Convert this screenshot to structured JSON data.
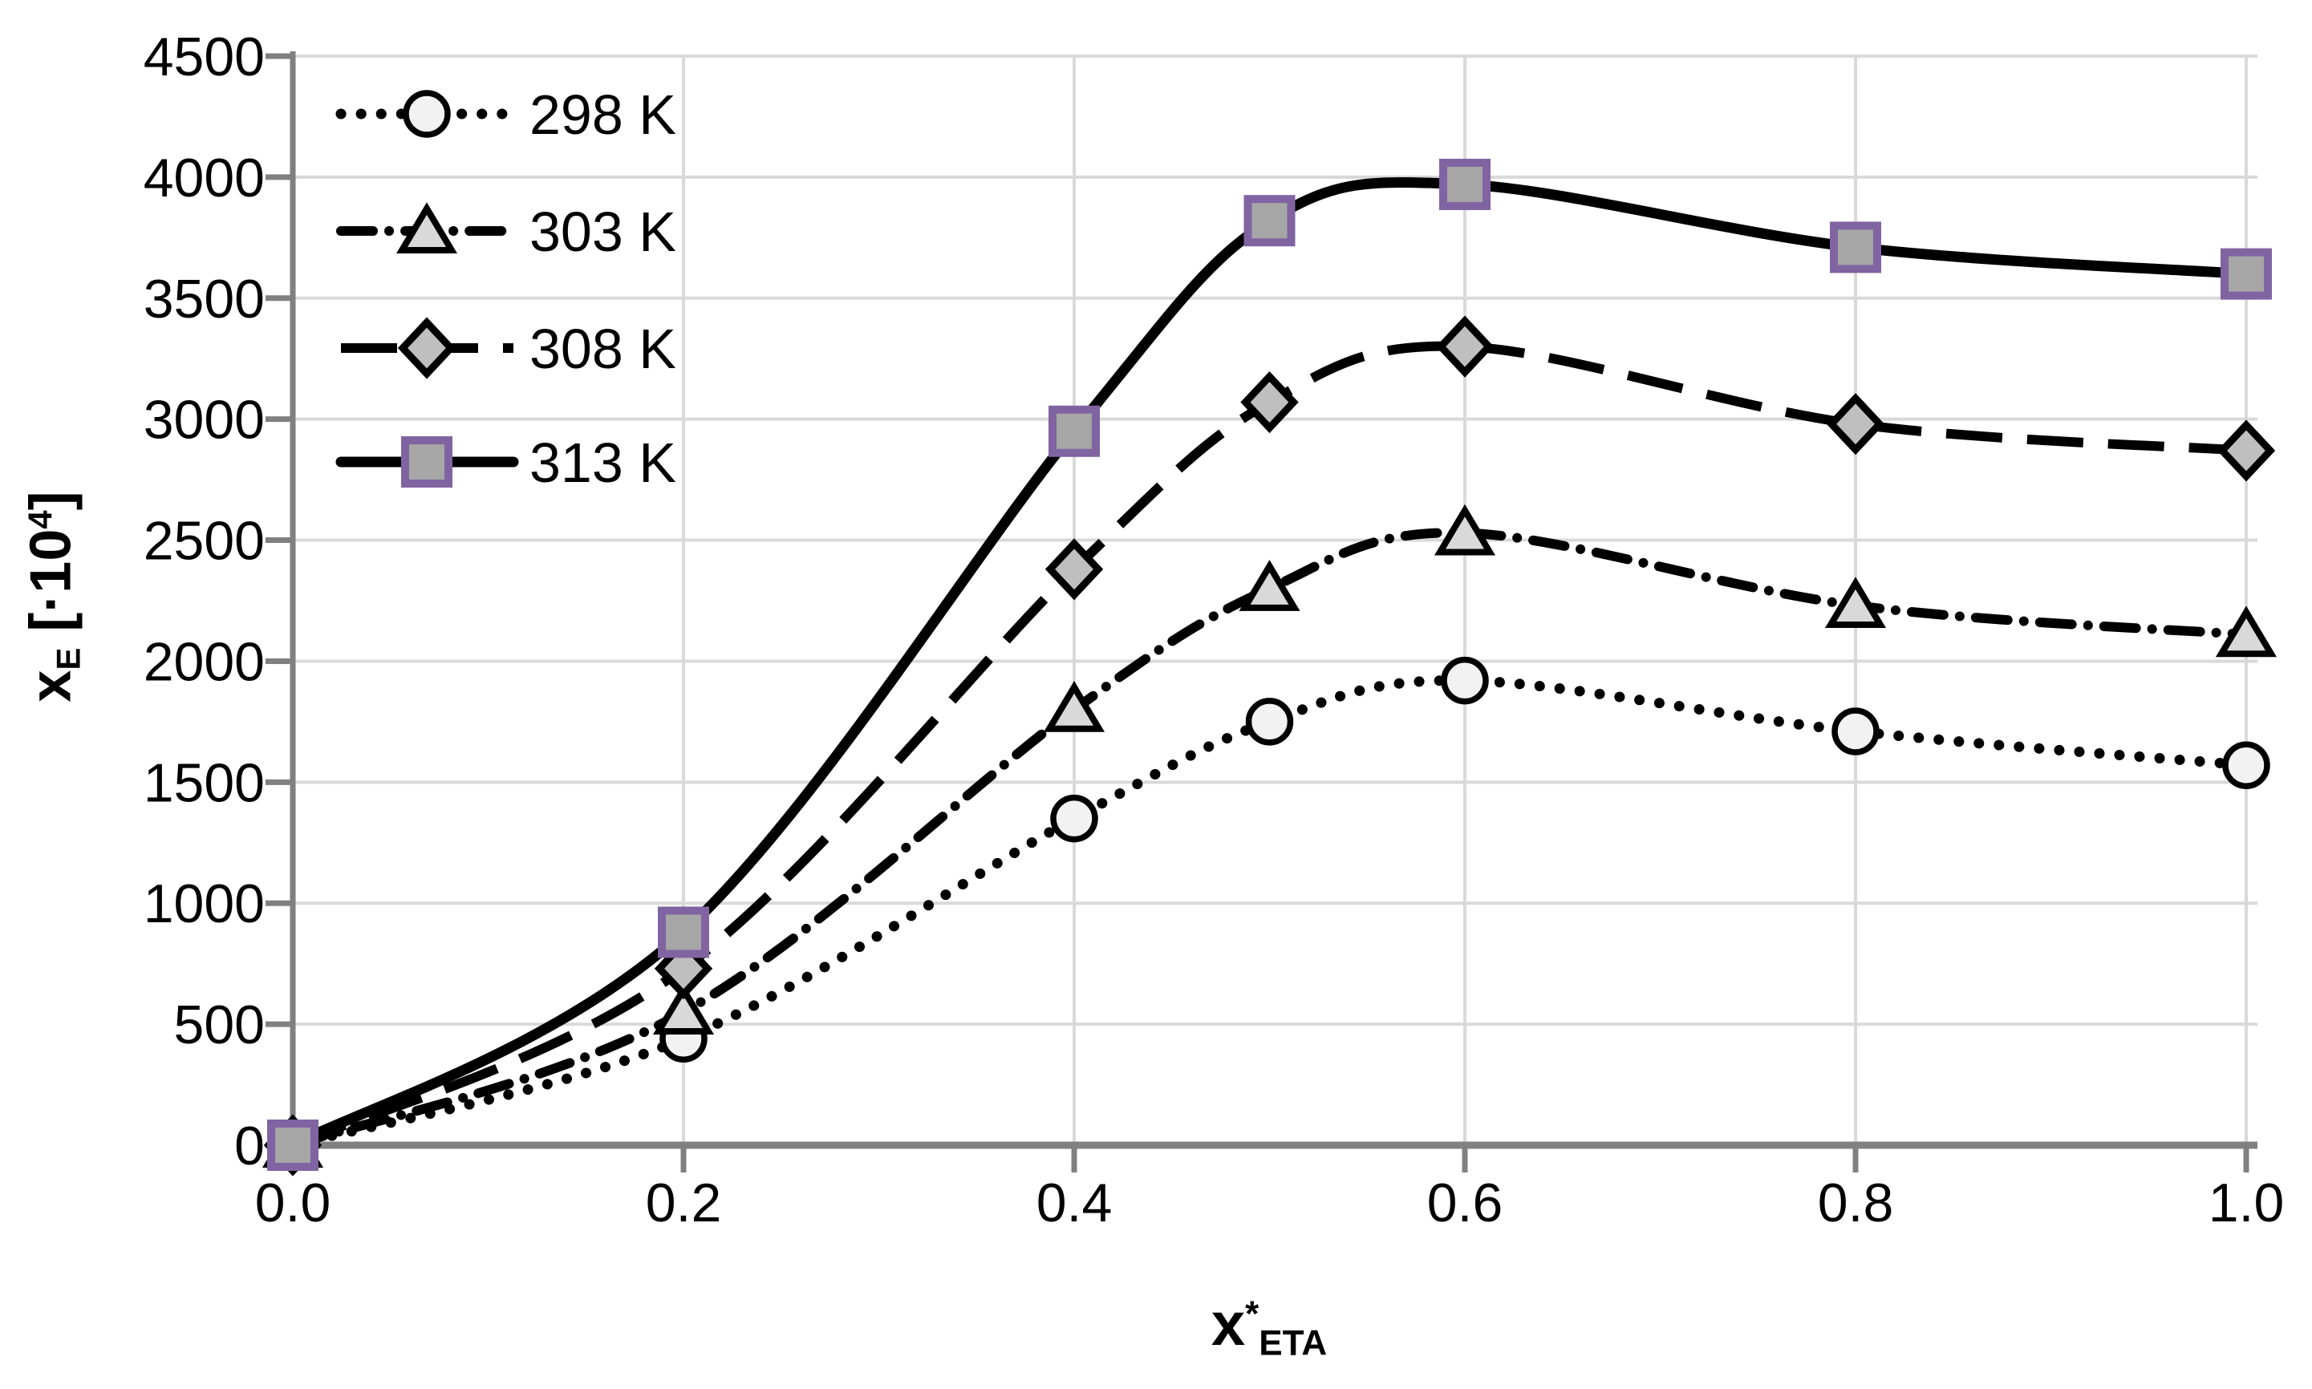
{
  "chart_data": {
    "type": "line",
    "title": "",
    "xlabel_parts": {
      "base": "x",
      "sup": "*",
      "sub": "ETA"
    },
    "ylabel_parts": {
      "base": "x",
      "sub": "E",
      "mid": " [·10",
      "sup": "4",
      "end": "]"
    },
    "xlim": [
      0,
      1
    ],
    "ylim": [
      0,
      4500
    ],
    "x_ticks": [
      "0.0",
      "0.2",
      "0.4",
      "0.6",
      "0.8",
      "1.0"
    ],
    "y_ticks": [
      "0",
      "500",
      "1000",
      "1500",
      "2000",
      "2500",
      "3000",
      "3500",
      "4000",
      "4500"
    ],
    "grid": true,
    "legend_position": "top-left",
    "x": [
      0,
      0.2,
      0.4,
      0.5,
      0.6,
      0.8,
      1.0
    ],
    "series": [
      {
        "name": "298 K",
        "line": "dotted",
        "marker": "circle",
        "values": [
          0,
          440,
          1350,
          1750,
          1920,
          1710,
          1570
        ]
      },
      {
        "name": "303 K",
        "line": "dashdot",
        "marker": "triangle",
        "values": [
          0,
          550,
          1800,
          2300,
          2530,
          2230,
          2110
        ]
      },
      {
        "name": "308 K",
        "line": "longdash",
        "marker": "diamond",
        "values": [
          0,
          730,
          2380,
          3070,
          3300,
          2980,
          2870
        ]
      },
      {
        "name": "313 K",
        "line": "solid",
        "marker": "square",
        "values": [
          0,
          880,
          2950,
          3820,
          3970,
          3710,
          3600
        ]
      }
    ]
  },
  "colors": {
    "line": "#000000",
    "grid": "#D9D9D9",
    "axis": "#808080",
    "text": "#000000",
    "background": "#FFFFFF",
    "circle_fill": "#F2F2F2",
    "triangle_fill": "#D9D9D9",
    "diamond_fill": "#BFBFBF",
    "square_fill": "#A6A6A6",
    "square_border": "#8064A2"
  }
}
